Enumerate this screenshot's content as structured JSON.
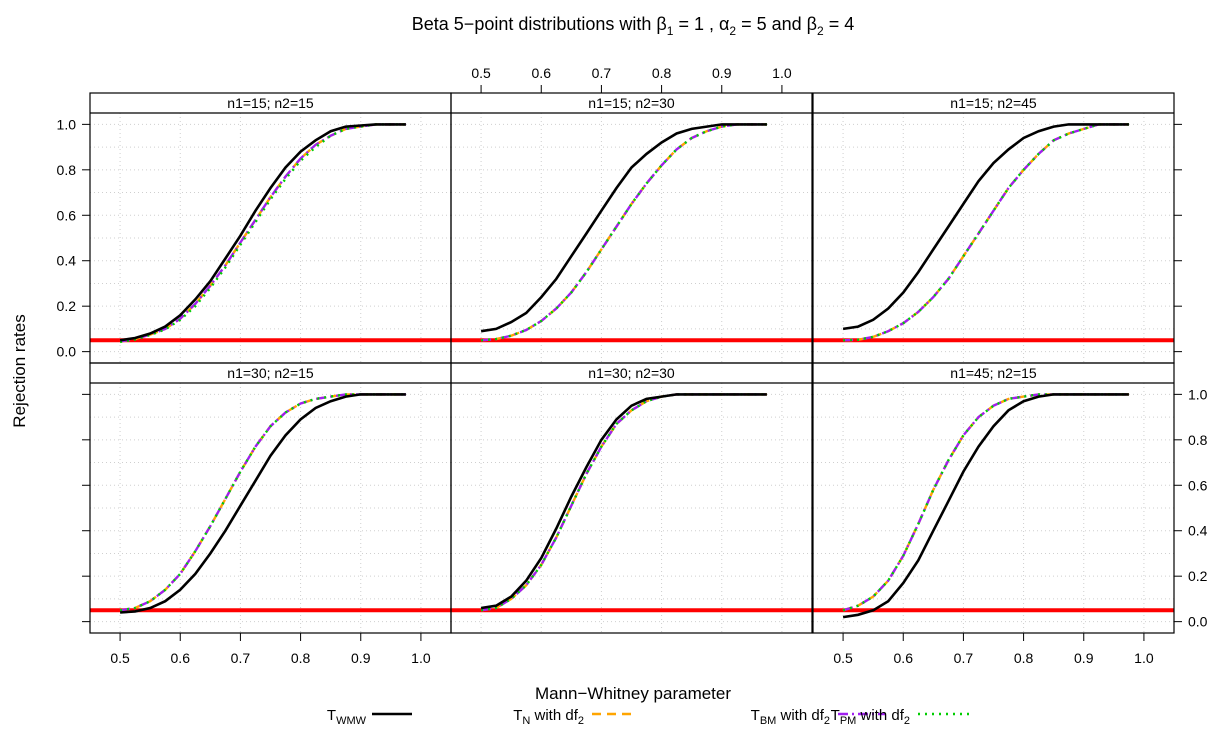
{
  "chart_data": {
    "type": "line",
    "title": "Beta 5−point distributions with β₁ = 1 , α₂ = 5 and β₂ = 4",
    "title_parts": {
      "prefix": "Beta 5−point distributions with ",
      "b": "β",
      "sub1": "1",
      "mid1": " = 1 , ",
      "a": "α",
      "sub2": "2",
      "mid2": " = 5 and ",
      "b2": "β",
      "sub3": "2",
      "end": " = 4"
    },
    "xlabel": "Mann−Whitney parameter",
    "ylabel": "Rejection rates",
    "xlim": [
      0.45,
      1.05
    ],
    "ylim": [
      -0.05,
      1.05
    ],
    "xticks": [
      "0.5",
      "0.6",
      "0.7",
      "0.8",
      "0.9",
      "1.0"
    ],
    "yticks": [
      "0.0",
      "0.2",
      "0.4",
      "0.6",
      "0.8",
      "1.0"
    ],
    "grid": true,
    "reference_line": {
      "y": 0.05,
      "color": "#ff0000"
    },
    "legend_position": "bottom",
    "legend": [
      {
        "base": "T",
        "sub": "WMW",
        "tail": "",
        "tail_sub": "",
        "color": "#000000",
        "dash": ""
      },
      {
        "base": "T",
        "sub": "N",
        "tail": " with df",
        "tail_sub": "2",
        "color": "#ffa500",
        "dash": "9,6"
      },
      {
        "base": "T",
        "sub": "BM",
        "tail": " with df",
        "tail_sub": "2",
        "color": "#a020f0",
        "dash": "10,4,2,4"
      },
      {
        "base": "T",
        "sub": "PM",
        "tail": " with df",
        "tail_sub": "2",
        "color": "#00cd00",
        "dash": "2,5"
      }
    ],
    "x": [
      0.5,
      0.525,
      0.55,
      0.575,
      0.6,
      0.625,
      0.65,
      0.675,
      0.7,
      0.725,
      0.75,
      0.775,
      0.8,
      0.825,
      0.85,
      0.875,
      0.9,
      0.925,
      0.95,
      0.975
    ],
    "panels": [
      {
        "title": "n1=15; n2=15",
        "series": [
          {
            "values": [
              0.05,
              0.06,
              0.08,
              0.11,
              0.16,
              0.23,
              0.31,
              0.41,
              0.51,
              0.62,
              0.72,
              0.81,
              0.88,
              0.93,
              0.97,
              0.99,
              0.995,
              1.0,
              1.0,
              1.0
            ]
          },
          {
            "values": [
              0.045,
              0.055,
              0.075,
              0.1,
              0.145,
              0.21,
              0.29,
              0.38,
              0.48,
              0.58,
              0.68,
              0.77,
              0.85,
              0.91,
              0.95,
              0.98,
              0.99,
              1.0,
              1.0,
              1.0
            ]
          },
          {
            "values": [
              0.045,
              0.055,
              0.075,
              0.1,
              0.145,
              0.21,
              0.29,
              0.38,
              0.48,
              0.58,
              0.68,
              0.77,
              0.85,
              0.91,
              0.95,
              0.98,
              0.99,
              1.0,
              1.0,
              1.0
            ]
          },
          {
            "values": [
              0.043,
              0.053,
              0.073,
              0.098,
              0.14,
              0.2,
              0.28,
              0.37,
              0.47,
              0.57,
              0.67,
              0.76,
              0.84,
              0.9,
              0.95,
              0.98,
              0.99,
              1.0,
              1.0,
              1.0
            ]
          }
        ]
      },
      {
        "title": "n1=15; n2=30",
        "series": [
          {
            "values": [
              0.09,
              0.1,
              0.13,
              0.17,
              0.24,
              0.32,
              0.42,
              0.52,
              0.62,
              0.72,
              0.81,
              0.87,
              0.92,
              0.96,
              0.98,
              0.99,
              1.0,
              1.0,
              1.0,
              1.0
            ]
          },
          {
            "values": [
              0.05,
              0.055,
              0.07,
              0.095,
              0.135,
              0.19,
              0.26,
              0.35,
              0.45,
              0.55,
              0.65,
              0.74,
              0.82,
              0.89,
              0.94,
              0.97,
              0.99,
              1.0,
              1.0,
              1.0
            ]
          },
          {
            "values": [
              0.05,
              0.055,
              0.07,
              0.095,
              0.135,
              0.19,
              0.26,
              0.35,
              0.45,
              0.55,
              0.65,
              0.74,
              0.82,
              0.89,
              0.94,
              0.97,
              0.99,
              1.0,
              1.0,
              1.0
            ]
          },
          {
            "values": [
              0.05,
              0.055,
              0.07,
              0.095,
              0.135,
              0.19,
              0.26,
              0.35,
              0.45,
              0.55,
              0.65,
              0.74,
              0.82,
              0.89,
              0.94,
              0.97,
              0.99,
              1.0,
              1.0,
              1.0
            ]
          }
        ]
      },
      {
        "title": "n1=15; n2=45",
        "series": [
          {
            "values": [
              0.1,
              0.11,
              0.14,
              0.19,
              0.26,
              0.35,
              0.45,
              0.55,
              0.65,
              0.75,
              0.83,
              0.89,
              0.94,
              0.97,
              0.99,
              1.0,
              1.0,
              1.0,
              1.0,
              1.0
            ]
          },
          {
            "values": [
              0.05,
              0.052,
              0.065,
              0.09,
              0.125,
              0.175,
              0.24,
              0.32,
              0.42,
              0.52,
              0.62,
              0.72,
              0.8,
              0.87,
              0.93,
              0.96,
              0.98,
              1.0,
              1.0,
              1.0
            ]
          },
          {
            "values": [
              0.05,
              0.052,
              0.065,
              0.09,
              0.125,
              0.175,
              0.24,
              0.32,
              0.42,
              0.52,
              0.62,
              0.72,
              0.8,
              0.87,
              0.93,
              0.96,
              0.98,
              1.0,
              1.0,
              1.0
            ]
          },
          {
            "values": [
              0.05,
              0.052,
              0.065,
              0.09,
              0.125,
              0.175,
              0.24,
              0.32,
              0.42,
              0.52,
              0.62,
              0.72,
              0.8,
              0.87,
              0.93,
              0.96,
              0.98,
              1.0,
              1.0,
              1.0
            ]
          }
        ]
      },
      {
        "title": "n1=30; n2=15",
        "series": [
          {
            "values": [
              0.04,
              0.045,
              0.06,
              0.09,
              0.14,
              0.21,
              0.3,
              0.4,
              0.51,
              0.62,
              0.73,
              0.82,
              0.89,
              0.94,
              0.97,
              0.99,
              1.0,
              1.0,
              1.0,
              1.0
            ]
          },
          {
            "values": [
              0.05,
              0.06,
              0.09,
              0.14,
              0.21,
              0.31,
              0.42,
              0.54,
              0.66,
              0.77,
              0.86,
              0.92,
              0.96,
              0.98,
              0.99,
              1.0,
              1.0,
              1.0,
              1.0,
              1.0
            ]
          },
          {
            "values": [
              0.05,
              0.06,
              0.09,
              0.14,
              0.21,
              0.31,
              0.42,
              0.54,
              0.66,
              0.77,
              0.86,
              0.92,
              0.96,
              0.98,
              0.99,
              1.0,
              1.0,
              1.0,
              1.0,
              1.0
            ]
          },
          {
            "values": [
              0.05,
              0.06,
              0.09,
              0.14,
              0.21,
              0.31,
              0.42,
              0.54,
              0.66,
              0.77,
              0.86,
              0.92,
              0.96,
              0.98,
              0.99,
              1.0,
              1.0,
              1.0,
              1.0,
              1.0
            ]
          }
        ]
      },
      {
        "title": "n1=30; n2=30",
        "series": [
          {
            "values": [
              0.06,
              0.07,
              0.11,
              0.18,
              0.28,
              0.41,
              0.55,
              0.68,
              0.8,
              0.89,
              0.95,
              0.98,
              0.99,
              1.0,
              1.0,
              1.0,
              1.0,
              1.0,
              1.0,
              1.0
            ]
          },
          {
            "values": [
              0.05,
              0.06,
              0.1,
              0.16,
              0.25,
              0.37,
              0.51,
              0.65,
              0.77,
              0.87,
              0.93,
              0.97,
              0.99,
              1.0,
              1.0,
              1.0,
              1.0,
              1.0,
              1.0,
              1.0
            ]
          },
          {
            "values": [
              0.05,
              0.06,
              0.1,
              0.16,
              0.25,
              0.37,
              0.51,
              0.65,
              0.77,
              0.87,
              0.93,
              0.97,
              0.99,
              1.0,
              1.0,
              1.0,
              1.0,
              1.0,
              1.0,
              1.0
            ]
          },
          {
            "values": [
              0.05,
              0.06,
              0.1,
              0.16,
              0.25,
              0.37,
              0.51,
              0.65,
              0.77,
              0.87,
              0.93,
              0.97,
              0.99,
              1.0,
              1.0,
              1.0,
              1.0,
              1.0,
              1.0,
              1.0
            ]
          }
        ]
      },
      {
        "title": "n1=45; n2=15",
        "series": [
          {
            "values": [
              0.02,
              0.03,
              0.05,
              0.09,
              0.17,
              0.27,
              0.4,
              0.53,
              0.66,
              0.77,
              0.86,
              0.93,
              0.97,
              0.99,
              1.0,
              1.0,
              1.0,
              1.0,
              1.0,
              1.0
            ]
          },
          {
            "values": [
              0.05,
              0.07,
              0.11,
              0.18,
              0.29,
              0.43,
              0.58,
              0.71,
              0.82,
              0.9,
              0.95,
              0.98,
              0.99,
              1.0,
              1.0,
              1.0,
              1.0,
              1.0,
              1.0,
              1.0
            ]
          },
          {
            "values": [
              0.05,
              0.07,
              0.11,
              0.18,
              0.29,
              0.43,
              0.58,
              0.71,
              0.82,
              0.9,
              0.95,
              0.98,
              0.99,
              1.0,
              1.0,
              1.0,
              1.0,
              1.0,
              1.0,
              1.0
            ]
          },
          {
            "values": [
              0.05,
              0.07,
              0.11,
              0.18,
              0.29,
              0.43,
              0.58,
              0.71,
              0.82,
              0.9,
              0.95,
              0.98,
              0.99,
              1.0,
              1.0,
              1.0,
              1.0,
              1.0,
              1.0,
              1.0
            ]
          }
        ]
      }
    ]
  }
}
